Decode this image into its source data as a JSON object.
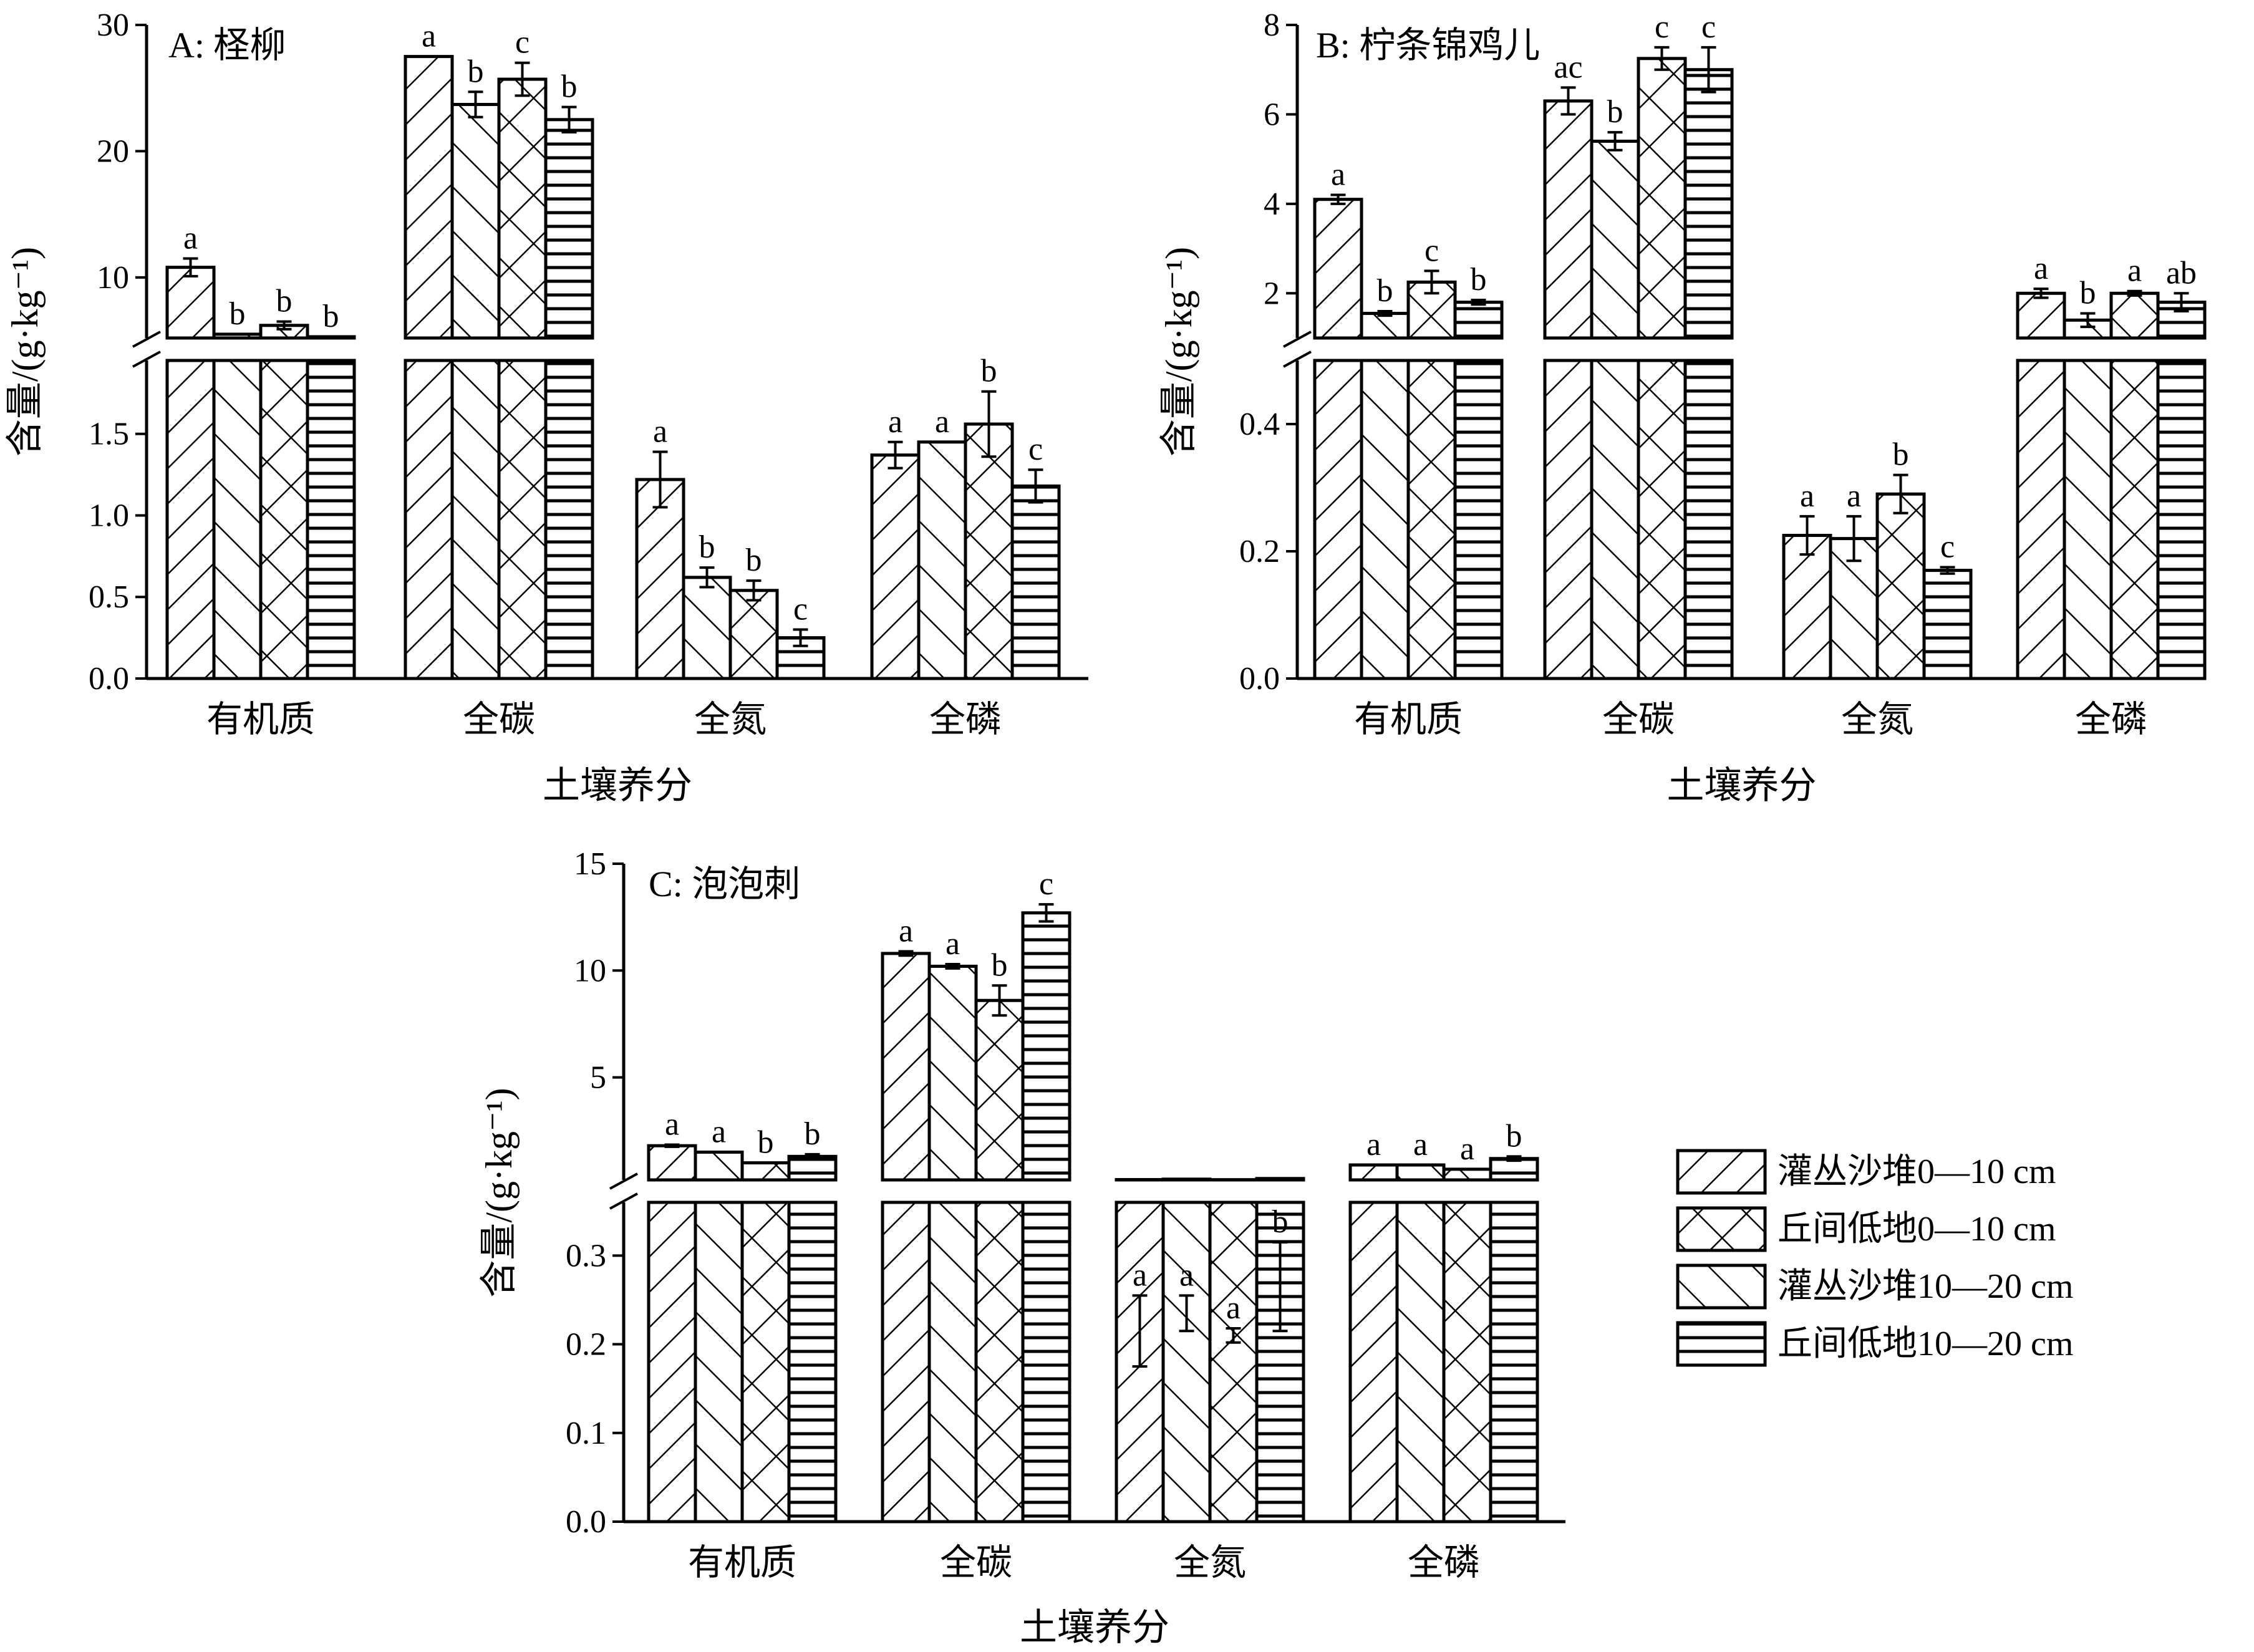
{
  "figure": {
    "legend": {
      "position": "right",
      "entries": [
        {
          "label": "灌丛沙堆0—10 cm",
          "pattern": "hatch-fwd"
        },
        {
          "label": "丘间低地0—10 cm",
          "pattern": "hatch-cross"
        },
        {
          "label": "灌丛沙堆10—20 cm",
          "pattern": "hatch-back"
        },
        {
          "label": "丘间低地10—20 cm",
          "pattern": "hatch-horiz"
        }
      ]
    }
  },
  "chart_data": [
    {
      "type": "bar",
      "title": "A: 柽柳",
      "xlabel": "土壤养分",
      "ylabel": "含量/(g·kg⁻¹)",
      "categories": [
        "有机质",
        "全碳",
        "全氮",
        "全磷"
      ],
      "axis_break": true,
      "upper_ticks": [
        "10",
        "20",
        "30"
      ],
      "lower_ticks": [
        "0.0",
        "0.5",
        "1.0",
        "1.5"
      ],
      "upper_ylim": [
        5.2,
        30
      ],
      "lower_ylim": [
        0,
        1.95
      ],
      "series": [
        {
          "name": "灌丛沙堆0—10 cm",
          "pattern": "hatch-fwd",
          "values": [
            10.8,
            27.5,
            1.22,
            1.37
          ],
          "errors": [
            0.7,
            0,
            0.17,
            0.08
          ],
          "sig": [
            "a",
            "a",
            "a",
            "a"
          ]
        },
        {
          "name": "灌丛沙堆10—20 cm",
          "pattern": "hatch-back",
          "values": [
            5.5,
            23.7,
            0.62,
            1.45
          ],
          "errors": [
            0,
            1.0,
            0.06,
            0
          ],
          "sig": [
            "b",
            "b",
            "b",
            "a"
          ]
        },
        {
          "name": "丘间低地0—10 cm",
          "pattern": "hatch-cross",
          "values": [
            6.2,
            25.7,
            0.54,
            1.56
          ],
          "errors": [
            0.3,
            1.3,
            0.06,
            0.2
          ],
          "sig": [
            "b",
            "c",
            "b",
            "b"
          ]
        },
        {
          "name": "丘间低地10—20 cm",
          "pattern": "hatch-horiz",
          "values": [
            5.3,
            22.5,
            0.25,
            1.18
          ],
          "errors": [
            0,
            1.0,
            0.05,
            0.1
          ],
          "sig": [
            "b",
            "b",
            "c",
            "c"
          ]
        }
      ]
    },
    {
      "type": "bar",
      "title": "B: 柠条锦鸡儿",
      "xlabel": "土壤养分",
      "ylabel": "含量/(g·kg⁻¹)",
      "categories": [
        "有机质",
        "全碳",
        "全氮",
        "全磷"
      ],
      "axis_break": true,
      "upper_ticks": [
        "2",
        "4",
        "6",
        "8"
      ],
      "lower_ticks": [
        "0.0",
        "0.2",
        "0.4"
      ],
      "upper_ylim": [
        1.0,
        8
      ],
      "lower_ylim": [
        0,
        0.5
      ],
      "series": [
        {
          "name": "灌丛沙堆0—10 cm",
          "pattern": "hatch-fwd",
          "values": [
            4.1,
            6.3,
            0.225,
            2.0
          ],
          "errors": [
            0.1,
            0.3,
            0.03,
            0.1
          ],
          "sig": [
            "a",
            "ac",
            "a",
            "a"
          ]
        },
        {
          "name": "灌丛沙堆10—20 cm",
          "pattern": "hatch-back",
          "values": [
            1.55,
            5.4,
            0.22,
            1.4
          ],
          "errors": [
            0.05,
            0.2,
            0.035,
            0.15
          ],
          "sig": [
            "b",
            "b",
            "a",
            "b"
          ]
        },
        {
          "name": "丘间低地0—10 cm",
          "pattern": "hatch-cross",
          "values": [
            2.25,
            7.25,
            0.29,
            2.0
          ],
          "errors": [
            0.25,
            0.25,
            0.03,
            0.05
          ],
          "sig": [
            "c",
            "c",
            "b",
            "a"
          ]
        },
        {
          "name": "丘间低地10—20 cm",
          "pattern": "hatch-horiz",
          "values": [
            1.8,
            7.0,
            0.17,
            1.8
          ],
          "errors": [
            0.05,
            0.5,
            0.005,
            0.2
          ],
          "sig": [
            "b",
            "c",
            "c",
            "ab"
          ]
        }
      ]
    },
    {
      "type": "bar",
      "title": "C: 泡泡刺",
      "xlabel": "土壤养分",
      "ylabel": "含量/(g·kg⁻¹)",
      "categories": [
        "有机质",
        "全碳",
        "全氮",
        "全磷"
      ],
      "axis_break": true,
      "upper_ticks": [
        "5",
        "10",
        "15"
      ],
      "lower_ticks": [
        "0.0",
        "0.1",
        "0.2",
        "0.3"
      ],
      "upper_ylim": [
        0.2,
        15
      ],
      "lower_ylim": [
        0,
        0.36
      ],
      "series": [
        {
          "name": "灌丛沙堆0—10 cm",
          "pattern": "hatch-fwd",
          "values": [
            1.8,
            10.8,
            0.215,
            0.9
          ],
          "errors": [
            0.05,
            0.1,
            0.04,
            0
          ],
          "sig": [
            "a",
            "a",
            "a",
            "a"
          ]
        },
        {
          "name": "灌丛沙堆10—20 cm",
          "pattern": "hatch-back",
          "values": [
            1.5,
            10.2,
            0.235,
            0.9
          ],
          "errors": [
            0,
            0.1,
            0.02,
            0
          ],
          "sig": [
            "a",
            "a",
            "a",
            "a"
          ]
        },
        {
          "name": "丘间低地0—10 cm",
          "pattern": "hatch-cross",
          "values": [
            1.0,
            8.6,
            0.21,
            0.7
          ],
          "errors": [
            0,
            0.7,
            0.008,
            0
          ],
          "sig": [
            "b",
            "b",
            "a",
            "a"
          ]
        },
        {
          "name": "丘间低地10—20 cm",
          "pattern": "hatch-horiz",
          "values": [
            1.3,
            12.7,
            0.265,
            1.2
          ],
          "errors": [
            0.1,
            0.4,
            0.05,
            0.1
          ],
          "sig": [
            "b",
            "c",
            "b",
            "b"
          ]
        }
      ]
    }
  ]
}
